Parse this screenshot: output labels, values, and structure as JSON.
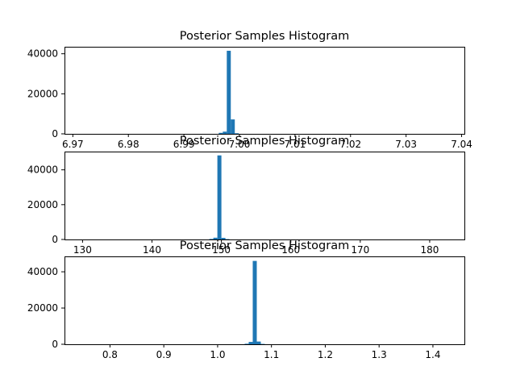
{
  "chart_data": [
    {
      "type": "histogram",
      "title": "Posterior Samples Histogram",
      "xlabel": "",
      "ylabel": "",
      "xlim": [
        6.9685,
        7.0405
      ],
      "ylim": [
        0,
        43500
      ],
      "grid": false,
      "color": "#1f77b4",
      "bin_width": 0.00072,
      "bins": [
        {
          "x": 6.99664,
          "count": 500
        },
        {
          "x": 6.99736,
          "count": 1100
        },
        {
          "x": 6.99808,
          "count": 41500
        },
        {
          "x": 6.9988,
          "count": 7200
        },
        {
          "x": 6.99952,
          "count": 300
        }
      ],
      "xticks": [
        {
          "value": 6.97,
          "label": "6.97"
        },
        {
          "value": 6.98,
          "label": "6.98"
        },
        {
          "value": 6.99,
          "label": "6.99"
        },
        {
          "value": 7.0,
          "label": "7.00"
        },
        {
          "value": 7.01,
          "label": "7.01"
        },
        {
          "value": 7.02,
          "label": "7.02"
        },
        {
          "value": 7.03,
          "label": "7.03"
        },
        {
          "value": 7.04,
          "label": "7.04"
        }
      ],
      "yticks": [
        {
          "value": 0,
          "label": "0"
        },
        {
          "value": 20000,
          "label": "20000"
        },
        {
          "value": 40000,
          "label": "40000"
        }
      ]
    },
    {
      "type": "histogram",
      "title": "Posterior Samples Histogram",
      "xlabel": "",
      "ylabel": "",
      "xlim": [
        127.4,
        185.0
      ],
      "ylim": [
        0,
        50500
      ],
      "grid": false,
      "color": "#1f77b4",
      "bin_width": 0.58,
      "bins": [
        {
          "x": 148.55,
          "count": 300
        },
        {
          "x": 149.13,
          "count": 1000
        },
        {
          "x": 149.71,
          "count": 48300
        },
        {
          "x": 150.29,
          "count": 900
        },
        {
          "x": 150.87,
          "count": 200
        }
      ],
      "xticks": [
        {
          "value": 130,
          "label": "130"
        },
        {
          "value": 140,
          "label": "140"
        },
        {
          "value": 150,
          "label": "150"
        },
        {
          "value": 160,
          "label": "160"
        },
        {
          "value": 170,
          "label": "170"
        },
        {
          "value": 180,
          "label": "180"
        }
      ],
      "yticks": [
        {
          "value": 0,
          "label": "0"
        },
        {
          "value": 20000,
          "label": "20000"
        },
        {
          "value": 40000,
          "label": "40000"
        }
      ]
    },
    {
      "type": "histogram",
      "title": "Posterior Samples Histogram",
      "xlabel": "",
      "ylabel": "",
      "xlim": [
        0.7155,
        1.4585
      ],
      "ylim": [
        0,
        48500
      ],
      "grid": false,
      "color": "#1f77b4",
      "bin_width": 0.0075,
      "bins": [
        {
          "x": 1.054,
          "count": 300
        },
        {
          "x": 1.0615,
          "count": 1300
        },
        {
          "x": 1.069,
          "count": 46000
        },
        {
          "x": 1.0765,
          "count": 1500
        },
        {
          "x": 1.084,
          "count": 200
        }
      ],
      "xticks": [
        {
          "value": 0.8,
          "label": "0.8"
        },
        {
          "value": 0.9,
          "label": "0.9"
        },
        {
          "value": 1.0,
          "label": "1.0"
        },
        {
          "value": 1.1,
          "label": "1.1"
        },
        {
          "value": 1.2,
          "label": "1.2"
        },
        {
          "value": 1.3,
          "label": "1.3"
        },
        {
          "value": 1.4,
          "label": "1.4"
        }
      ],
      "yticks": [
        {
          "value": 0,
          "label": "0"
        },
        {
          "value": 20000,
          "label": "20000"
        },
        {
          "value": 40000,
          "label": "40000"
        }
      ]
    }
  ]
}
